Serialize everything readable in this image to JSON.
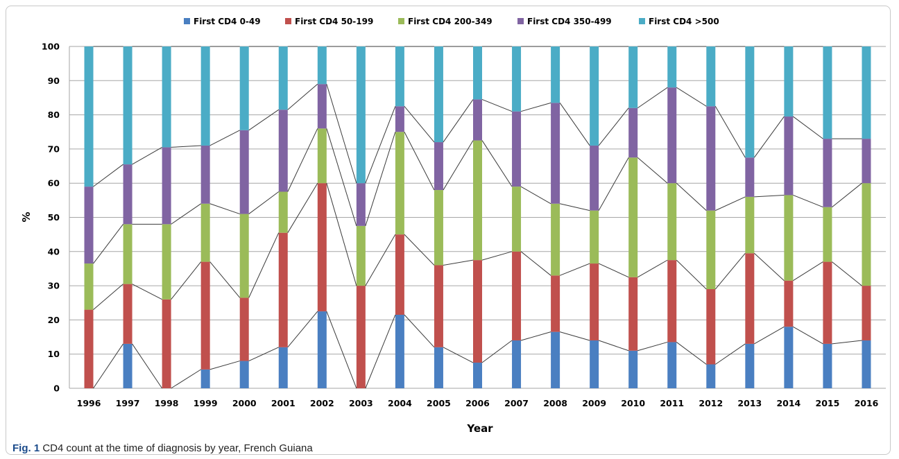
{
  "chart_data": {
    "type": "bar",
    "stacked": true,
    "normalized_percent": true,
    "title": "",
    "xlabel": "Year",
    "ylabel": "%",
    "ylim": [
      0,
      100
    ],
    "yticks": [
      0,
      10,
      20,
      30,
      40,
      50,
      60,
      70,
      80,
      90,
      100
    ],
    "grid": true,
    "legend_position": "top",
    "series_lines": true,
    "categories": [
      "1996",
      "1997",
      "1998",
      "1999",
      "2000",
      "2001",
      "2002",
      "2003",
      "2004",
      "2005",
      "2006",
      "2007",
      "2008",
      "2009",
      "2010",
      "2011",
      "2012",
      "2013",
      "2014",
      "2015",
      "2016"
    ],
    "series": [
      {
        "name": "First CD4 0-49",
        "color": "#4a7fc1",
        "values": [
          0,
          13,
          0,
          5.5,
          8,
          12,
          22.5,
          0,
          21.5,
          12,
          7.5,
          14,
          16.5,
          14,
          11,
          13.5,
          7,
          13,
          18,
          13,
          14
        ]
      },
      {
        "name": "First CD4 50-199",
        "color": "#c0504d",
        "values": [
          23,
          17.5,
          26,
          31.5,
          18.5,
          33.5,
          37.5,
          30,
          23.5,
          24,
          30,
          26,
          16.5,
          22.5,
          21.5,
          24,
          22,
          26.5,
          13.5,
          24,
          16
        ]
      },
      {
        "name": "First CD4 200-349",
        "color": "#9bbb59",
        "values": [
          13.5,
          17.5,
          22,
          17,
          24.5,
          12,
          16,
          17.5,
          30,
          22,
          35,
          19,
          21,
          15.5,
          35,
          22.5,
          23,
          16.5,
          25,
          16,
          30
        ]
      },
      {
        "name": "First CD4 350-499",
        "color": "#8064a2",
        "values": [
          22.5,
          17.5,
          22.5,
          17,
          24.5,
          24,
          13,
          12.5,
          7.5,
          14,
          12,
          22,
          29.5,
          19,
          14.5,
          28,
          30.5,
          11.5,
          23,
          20,
          13
        ]
      },
      {
        "name": "First CD4 >500",
        "color": "#4bacc6",
        "values": [
          41,
          34.5,
          29.5,
          29,
          24.5,
          18.5,
          11,
          40,
          17.5,
          28,
          15.5,
          19,
          16.5,
          29,
          18,
          12,
          17.5,
          32.5,
          20.5,
          27,
          27
        ]
      }
    ]
  },
  "caption": {
    "fig_label": "Fig. 1",
    "text": "CD4 count at the time of diagnosis by year, French Guiana"
  }
}
